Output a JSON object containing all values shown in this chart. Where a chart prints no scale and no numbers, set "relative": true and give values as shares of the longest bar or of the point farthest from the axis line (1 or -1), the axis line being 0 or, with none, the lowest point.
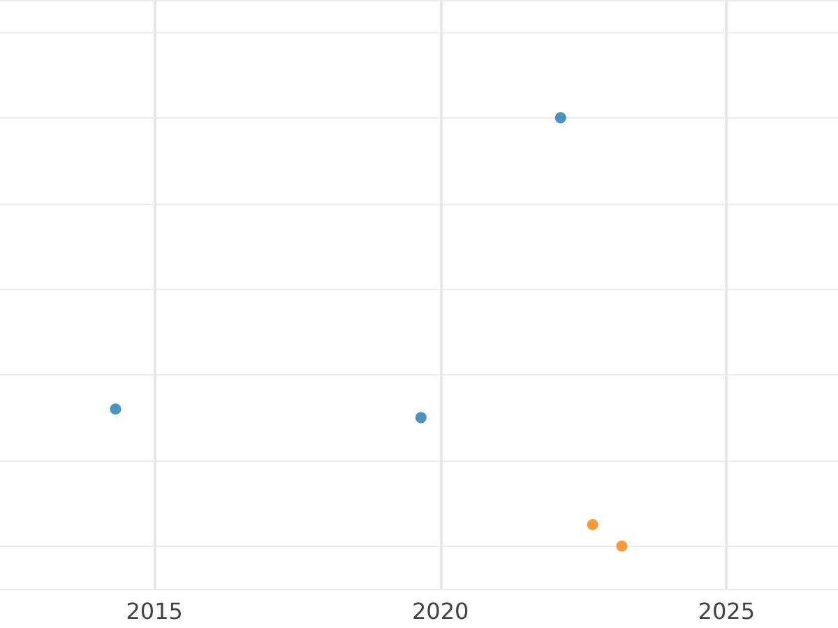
{
  "chart_data": {
    "type": "scatter",
    "relative": true,
    "grid": true,
    "marker": "circle",
    "xlim": [
      2012.3,
      2026.95
    ],
    "xticks": [
      2015,
      2020,
      2025
    ],
    "series": [
      {
        "color": "#1f77b4",
        "x": [
          2014.32,
          2019.66,
          2022.1
        ],
        "values": [
          0.32,
          0.3,
          1
        ]
      },
      {
        "color": "#ff7f0e",
        "x": [
          2022.66,
          2023.17
        ],
        "values": [
          0.05,
          0
        ]
      }
    ]
  }
}
